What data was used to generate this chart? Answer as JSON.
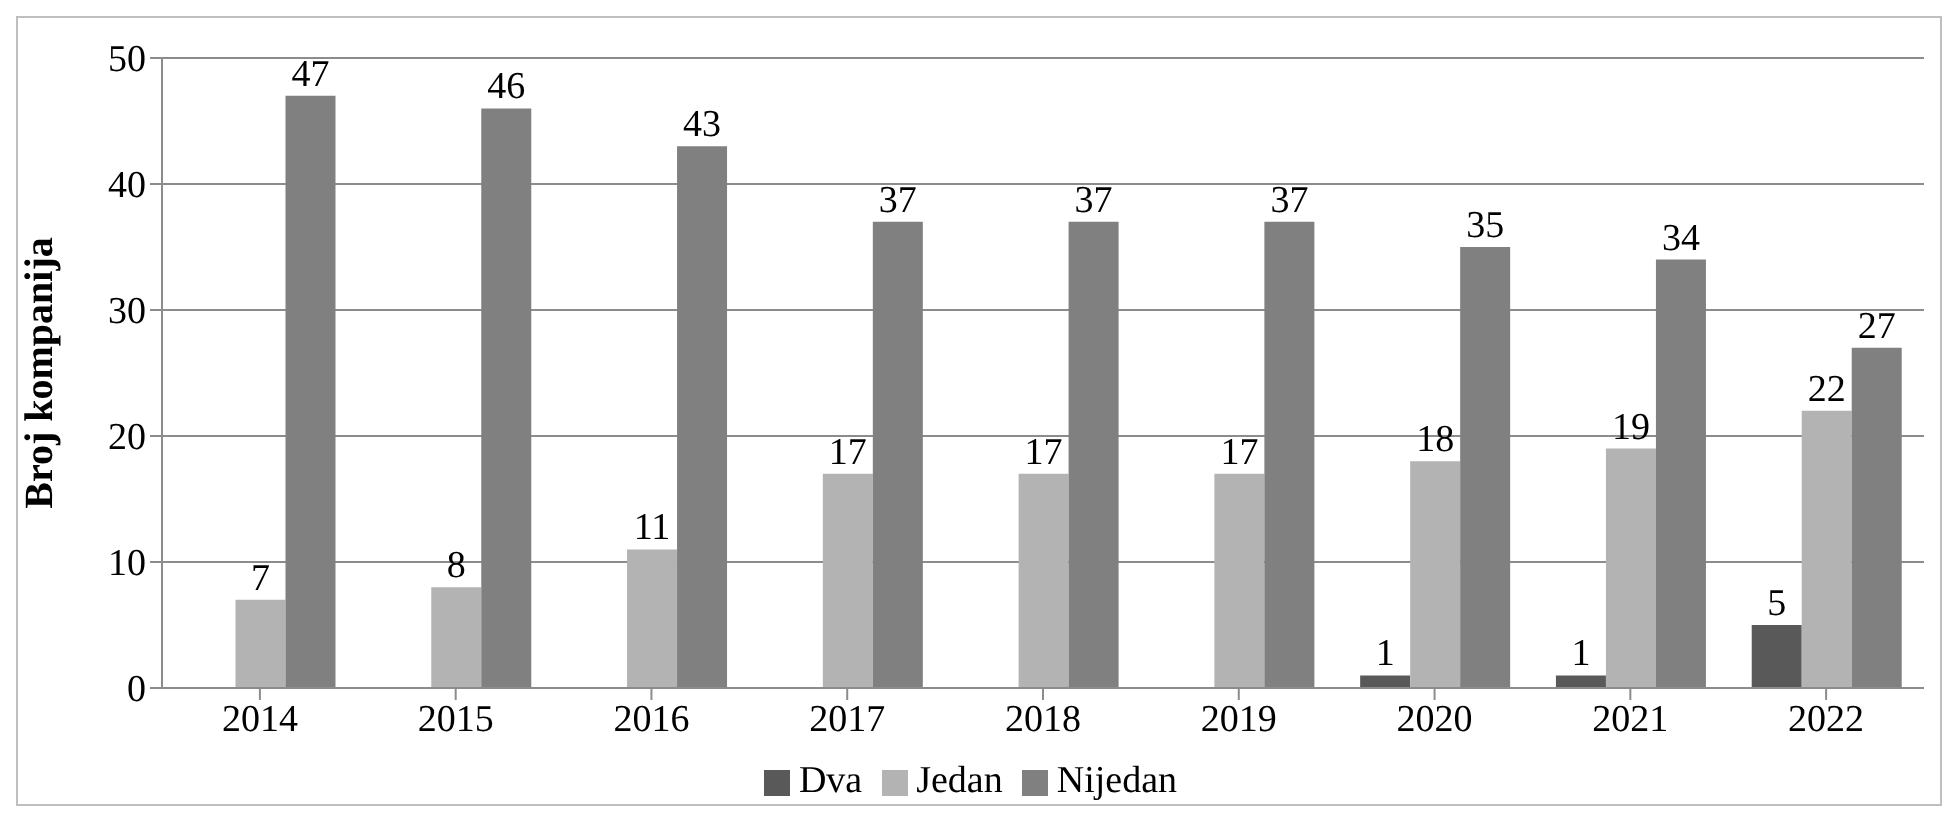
{
  "chart_data": {
    "type": "bar",
    "ylabel": "Broj kompanija",
    "categories": [
      "2014",
      "2015",
      "2016",
      "2017",
      "2018",
      "2019",
      "2020",
      "2021",
      "2022"
    ],
    "series": [
      {
        "name": "Dva",
        "color": "#595959",
        "values": [
          null,
          null,
          null,
          null,
          null,
          null,
          1,
          1,
          5
        ]
      },
      {
        "name": "Jedan",
        "color": "#b3b3b3",
        "values": [
          7,
          8,
          11,
          17,
          17,
          17,
          18,
          19,
          22
        ]
      },
      {
        "name": "Nijedan",
        "color": "#808080",
        "values": [
          47,
          46,
          43,
          37,
          37,
          37,
          35,
          34,
          27
        ]
      }
    ],
    "ylim": [
      0,
      50
    ],
    "yticks": [
      0,
      10,
      20,
      30,
      40,
      50
    ],
    "grid": "y",
    "legend": "bottom",
    "data_labels": true
  }
}
